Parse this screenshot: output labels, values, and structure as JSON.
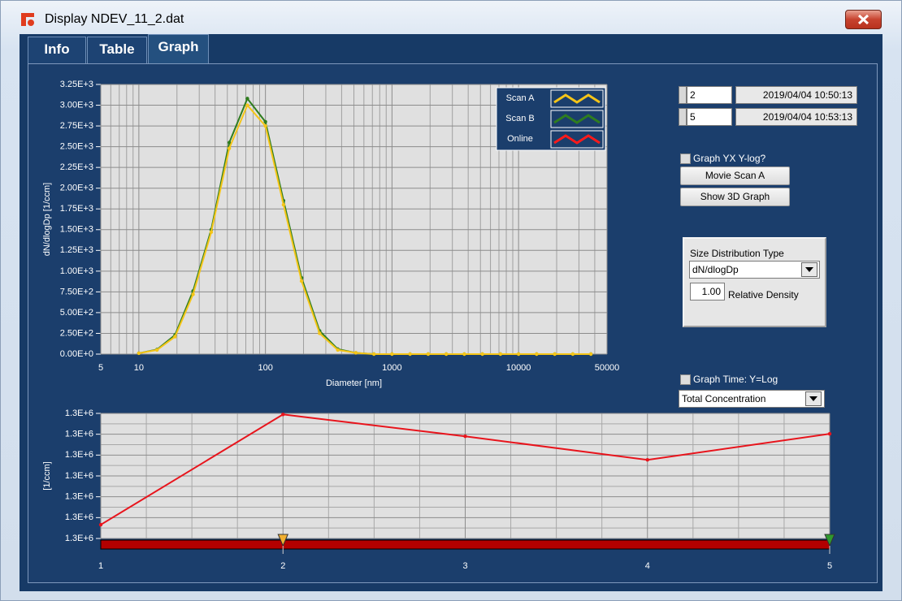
{
  "window": {
    "title": "Display NDEV_11_2.dat",
    "tabs": [
      "Info",
      "Table",
      "Graph"
    ]
  },
  "controls": {
    "scan_a": {
      "index": 2,
      "time": "2019/04/04 10:50:13"
    },
    "scan_b": {
      "index": 5,
      "time": "2019/04/04 10:53:13"
    },
    "graph_yx_ylog": "Graph YX Y-log?",
    "movie_button": "Movie Scan A",
    "show_3d_button": "Show 3D Graph",
    "size_distribution": {
      "title": "Size Distribution Type",
      "type": "dN/dlogDp",
      "density": "1.00",
      "density_label": "Relative Density"
    },
    "graph_time_ylog": "Graph Time: Y=Log",
    "time_quantity": "Total Concentration"
  },
  "chart_data": [
    {
      "type": "line",
      "xlabel": "Diameter [nm]",
      "ylabel": "dN/dlogDp [1/ccm]",
      "xscale": "log",
      "xlim": [
        5,
        50000
      ],
      "xticks": [
        5,
        10,
        100,
        1000,
        10000,
        50000
      ],
      "ylim": [
        0,
        3250
      ],
      "yticks": [
        {
          "value": 0,
          "label": "0.00E+0"
        },
        {
          "value": 250,
          "label": "2.50E+2"
        },
        {
          "value": 500,
          "label": "5.00E+2"
        },
        {
          "value": 750,
          "label": "7.50E+2"
        },
        {
          "value": 1000,
          "label": "1.00E+3"
        },
        {
          "value": 1250,
          "label": "1.25E+3"
        },
        {
          "value": 1500,
          "label": "1.50E+3"
        },
        {
          "value": 1750,
          "label": "1.75E+3"
        },
        {
          "value": 2000,
          "label": "2.00E+3"
        },
        {
          "value": 2250,
          "label": "2.25E+3"
        },
        {
          "value": 2500,
          "label": "2.50E+3"
        },
        {
          "value": 2750,
          "label": "2.75E+3"
        },
        {
          "value": 3000,
          "label": "3.00E+3"
        },
        {
          "value": 3250,
          "label": "3.25E+3"
        }
      ],
      "grid": true,
      "legend": "top-right",
      "x": [
        10,
        13.9,
        19.3,
        26.8,
        37.3,
        51.8,
        72,
        100,
        139,
        193,
        268,
        373,
        518,
        720,
        1000,
        1389,
        1931,
        2683,
        3728,
        5179,
        7197,
        10000,
        13895,
        19307,
        26827,
        37276
      ],
      "series": [
        {
          "name": "Scan B",
          "color": "#2f7d1f",
          "values": [
            10,
            55,
            230,
            760,
            1500,
            2550,
            3080,
            2800,
            1850,
            920,
            280,
            60,
            15,
            0,
            0,
            0,
            0,
            0,
            0,
            0,
            0,
            0,
            0,
            0,
            0,
            0
          ]
        },
        {
          "name": "Scan A",
          "color": "#f5c518",
          "values": [
            10,
            50,
            210,
            720,
            1470,
            2480,
            3000,
            2750,
            1800,
            880,
            250,
            50,
            15,
            0,
            0,
            0,
            0,
            0,
            0,
            0,
            0,
            0,
            0,
            0,
            0,
            0
          ]
        },
        {
          "name": "Online",
          "color": "#ff1a1a",
          "values": [
            null,
            null,
            null,
            null,
            null,
            null,
            null,
            null,
            null,
            null,
            null,
            null,
            null,
            null,
            null,
            null,
            null,
            null,
            null,
            null,
            null,
            null,
            null,
            null,
            null,
            null
          ]
        }
      ]
    },
    {
      "type": "line",
      "ylabel": "[1/ccm]",
      "xlim": [
        1,
        5
      ],
      "xticks": [
        1,
        2,
        3,
        4,
        5
      ],
      "ylim": [
        1298000,
        1304000
      ],
      "yticks": [
        {
          "value": 1298000,
          "label": "1.3E+6"
        },
        {
          "value": 1299000,
          "label": "1.3E+6"
        },
        {
          "value": 1300000,
          "label": "1.3E+6"
        },
        {
          "value": 1301000,
          "label": "1.3E+6"
        },
        {
          "value": 1302000,
          "label": "1.3E+6"
        },
        {
          "value": 1303000,
          "label": "1.3E+6"
        },
        {
          "value": 1304000,
          "label": "1.3E+6"
        }
      ],
      "grid": true,
      "x": [
        1,
        2,
        3,
        4,
        5
      ],
      "values": [
        1298660,
        1303950,
        1302900,
        1301770,
        1303020
      ],
      "color": "#e8141c"
    }
  ]
}
